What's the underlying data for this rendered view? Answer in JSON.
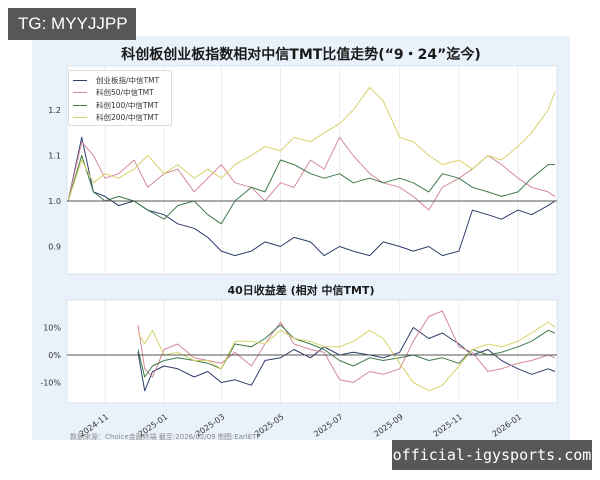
{
  "watermarks": {
    "top_left": "TG: MYYJJPP",
    "bottom_right": "official-igysports.com"
  },
  "chart_title": "科创板创业板指数相对中信TMT比值走势(“9・24”迄今)",
  "subchart_title": "40日收益差 (相对 中信TMT)",
  "source_note": "数据来源：Choice金融终端 截至:2026/02/09 制图:EarlETF",
  "colors": {
    "panel_bg": "#e9f1fb",
    "plot_bg": "#ffffff",
    "baseline": "#555555",
    "grid": "#e8e8e8"
  },
  "chart_data": [
    {
      "type": "line",
      "title": "科创板创业板指数相对中信TMT比值走势(“9・24”迄今)",
      "xlabel": "",
      "ylabel": "",
      "ylim": [
        0.85,
        1.3
      ],
      "yticks": [
        "0.9",
        "1.0",
        "1.1",
        "1.2"
      ],
      "xticks": [
        "2024-11",
        "2025-01",
        "2025-03",
        "2025-05",
        "2025-07",
        "2025-09",
        "2025-11",
        "2026-01"
      ],
      "grid": "vertical",
      "baseline": 1.0,
      "legend_position": "upper left",
      "x": [
        "2024-09-24",
        "2024-10-08",
        "2024-10-20",
        "2024-11-01",
        "2024-11-15",
        "2024-12-01",
        "2024-12-15",
        "2025-01-01",
        "2025-01-15",
        "2025-02-01",
        "2025-02-15",
        "2025-03-01",
        "2025-03-15",
        "2025-04-01",
        "2025-04-15",
        "2025-05-01",
        "2025-05-15",
        "2025-06-01",
        "2025-06-15",
        "2025-07-01",
        "2025-07-15",
        "2025-08-01",
        "2025-08-15",
        "2025-09-01",
        "2025-09-15",
        "2025-10-01",
        "2025-10-15",
        "2025-11-01",
        "2025-11-15",
        "2025-12-01",
        "2025-12-15",
        "2026-01-01",
        "2026-01-15",
        "2026-02-01",
        "2026-02-09"
      ],
      "series": [
        {
          "name": "创业板指/中信TMT",
          "color": "#2f3d6b",
          "values": [
            1.0,
            1.14,
            1.02,
            1.01,
            0.99,
            1.0,
            0.98,
            0.97,
            0.95,
            0.94,
            0.92,
            0.89,
            0.88,
            0.89,
            0.91,
            0.9,
            0.92,
            0.91,
            0.88,
            0.9,
            0.89,
            0.88,
            0.91,
            0.9,
            0.89,
            0.9,
            0.88,
            0.89,
            0.98,
            0.97,
            0.96,
            0.98,
            0.97,
            0.99,
            1.0
          ]
        },
        {
          "name": "科创50/中信TMT",
          "color": "#d48a9a",
          "values": [
            1.0,
            1.13,
            1.1,
            1.05,
            1.06,
            1.09,
            1.03,
            1.06,
            1.07,
            1.02,
            1.05,
            1.08,
            1.04,
            1.03,
            1.0,
            1.04,
            1.03,
            1.09,
            1.07,
            1.14,
            1.1,
            1.06,
            1.04,
            1.03,
            1.01,
            0.98,
            1.03,
            1.05,
            1.07,
            1.1,
            1.08,
            1.05,
            1.03,
            1.02,
            1.01
          ]
        },
        {
          "name": "科创100/中信TMT",
          "color": "#3d7a4a",
          "values": [
            1.0,
            1.1,
            1.02,
            1.0,
            1.01,
            1.0,
            0.98,
            0.96,
            0.99,
            1.0,
            0.97,
            0.95,
            1.0,
            1.03,
            1.02,
            1.09,
            1.08,
            1.06,
            1.05,
            1.06,
            1.04,
            1.05,
            1.04,
            1.05,
            1.04,
            1.02,
            1.06,
            1.05,
            1.03,
            1.02,
            1.01,
            1.02,
            1.05,
            1.08,
            1.08
          ]
        },
        {
          "name": "科创200/中信TMT",
          "color": "#d8d36a",
          "values": [
            1.0,
            1.09,
            1.04,
            1.06,
            1.05,
            1.07,
            1.1,
            1.06,
            1.08,
            1.05,
            1.07,
            1.05,
            1.08,
            1.1,
            1.12,
            1.11,
            1.14,
            1.13,
            1.15,
            1.17,
            1.2,
            1.25,
            1.22,
            1.14,
            1.13,
            1.1,
            1.08,
            1.09,
            1.07,
            1.1,
            1.09,
            1.12,
            1.15,
            1.2,
            1.24
          ]
        }
      ]
    },
    {
      "type": "line",
      "title": "40日收益差 (相对 中信TMT)",
      "xlabel": "",
      "ylabel": "",
      "ylim": [
        -18,
        20
      ],
      "yticks": [
        "10%",
        "0%",
        "-10%"
      ],
      "xticks": [
        "2024-11",
        "2025-01",
        "2025-03",
        "2025-05",
        "2025-07",
        "2025-09",
        "2025-11",
        "2026-01"
      ],
      "grid": "vertical",
      "baseline": 0,
      "x": [
        "2024-12-05",
        "2024-12-12",
        "2024-12-20",
        "2025-01-01",
        "2025-01-15",
        "2025-02-01",
        "2025-02-15",
        "2025-03-01",
        "2025-03-15",
        "2025-04-01",
        "2025-04-15",
        "2025-05-01",
        "2025-05-15",
        "2025-06-01",
        "2025-06-15",
        "2025-07-01",
        "2025-07-15",
        "2025-08-01",
        "2025-08-15",
        "2025-09-01",
        "2025-09-15",
        "2025-10-01",
        "2025-10-15",
        "2025-11-01",
        "2025-11-15",
        "2025-12-01",
        "2025-12-15",
        "2026-01-01",
        "2026-01-15",
        "2026-02-01",
        "2026-02-09"
      ],
      "series": [
        {
          "name": "创业板指/中信TMT",
          "color": "#2f3d6b",
          "values": [
            1,
            -13,
            -6,
            -4,
            -5,
            -8,
            -6,
            -10,
            -9,
            -11,
            -2,
            -1,
            2,
            -1,
            3,
            0,
            1,
            0,
            -1,
            1,
            10,
            6,
            8,
            4,
            0,
            2,
            -2,
            -5,
            -7,
            -5,
            -6
          ]
        },
        {
          "name": "科创50/中信TMT",
          "color": "#d48a9a",
          "values": [
            11,
            -5,
            -8,
            2,
            4,
            -1,
            -2,
            -3,
            1,
            -4,
            4,
            12,
            4,
            2,
            1,
            -9,
            -10,
            -6,
            -7,
            -5,
            5,
            14,
            16,
            3,
            1,
            -6,
            -5,
            -3,
            -2,
            0,
            -1
          ]
        },
        {
          "name": "科创100/中信TMT",
          "color": "#3d7a4a",
          "values": [
            2,
            -8,
            -4,
            -2,
            -1,
            -2,
            -3,
            -5,
            4,
            3,
            6,
            11,
            6,
            4,
            2,
            -2,
            -4,
            -1,
            -2,
            -1,
            0,
            -2,
            -1,
            -3,
            2,
            0,
            1,
            3,
            5,
            9,
            8
          ]
        },
        {
          "name": "科创200/中信TMT",
          "color": "#d8d36a",
          "values": [
            8,
            4,
            9,
            0,
            1,
            -2,
            -2,
            -5,
            5,
            5,
            4,
            9,
            6,
            5,
            3,
            3,
            5,
            9,
            6,
            -3,
            -10,
            -13,
            -11,
            -4,
            2,
            4,
            3,
            5,
            8,
            12,
            10
          ]
        }
      ]
    }
  ]
}
